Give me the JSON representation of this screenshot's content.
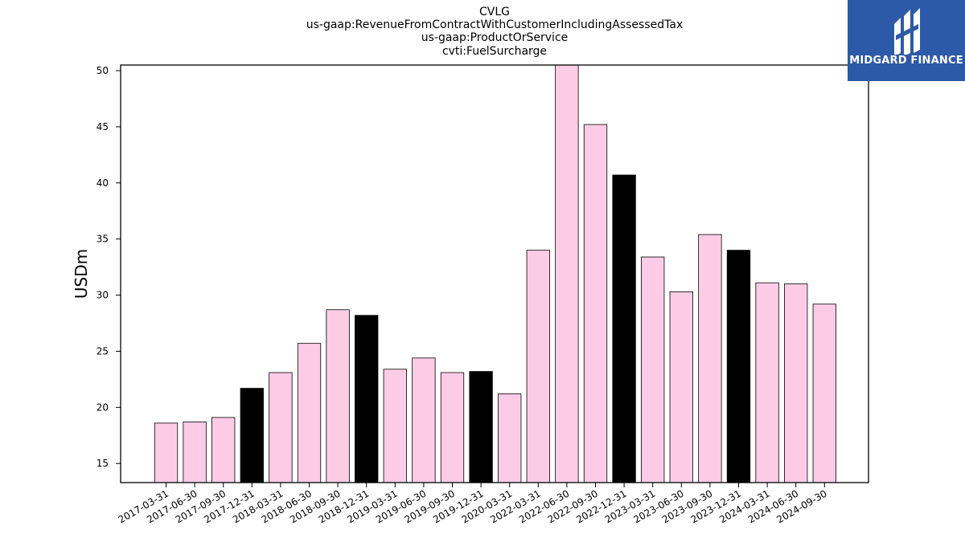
{
  "title_lines": [
    "CVLG",
    "us-gaap:RevenueFromContractWithCustomerIncludingAssessedTax",
    "us-gaap:ProductOrService",
    "cvti:FuelSurcharge"
  ],
  "logo": {
    "text": "MIDGARD FINANCE",
    "background": "#2d5aa8"
  },
  "chart_data": {
    "type": "bar",
    "title": "CVLG\nus-gaap:RevenueFromContractWithCustomerIncludingAssessedTax\nus-gaap:ProductOrService\ncvti:FuelSurcharge",
    "xlabel": "",
    "ylabel": "USDm",
    "ylim": [
      13.3,
      50.5
    ],
    "yticks": [
      15,
      20,
      25,
      30,
      35,
      40,
      45,
      50
    ],
    "grid": false,
    "categories": [
      "2017-03-31",
      "2017-06-30",
      "2017-09-30",
      "2017-12-31",
      "2018-03-31",
      "2018-06-30",
      "2018-09-30",
      "2018-12-31",
      "2019-03-31",
      "2019-06-30",
      "2019-09-30",
      "2019-12-31",
      "2020-03-31",
      "2022-03-31",
      "2022-06-30",
      "2022-09-30",
      "2022-12-31",
      "2023-03-31",
      "2023-06-30",
      "2023-09-30",
      "2023-12-31",
      "2024-03-31",
      "2024-06-30",
      "2024-09-30"
    ],
    "values": [
      18.6,
      18.7,
      19.1,
      21.7,
      23.1,
      25.7,
      28.7,
      28.2,
      23.4,
      24.4,
      23.1,
      23.2,
      21.2,
      34.0,
      50.5,
      45.2,
      40.7,
      33.4,
      30.3,
      35.4,
      34.0,
      31.1,
      31.0,
      29.2
    ],
    "highlight": [
      false,
      false,
      false,
      true,
      false,
      false,
      false,
      true,
      false,
      false,
      false,
      true,
      false,
      false,
      false,
      false,
      true,
      false,
      false,
      false,
      true,
      false,
      false,
      false
    ],
    "colors": {
      "bar": "#fccce6",
      "highlight": "#000000",
      "edge": "#000000"
    }
  }
}
